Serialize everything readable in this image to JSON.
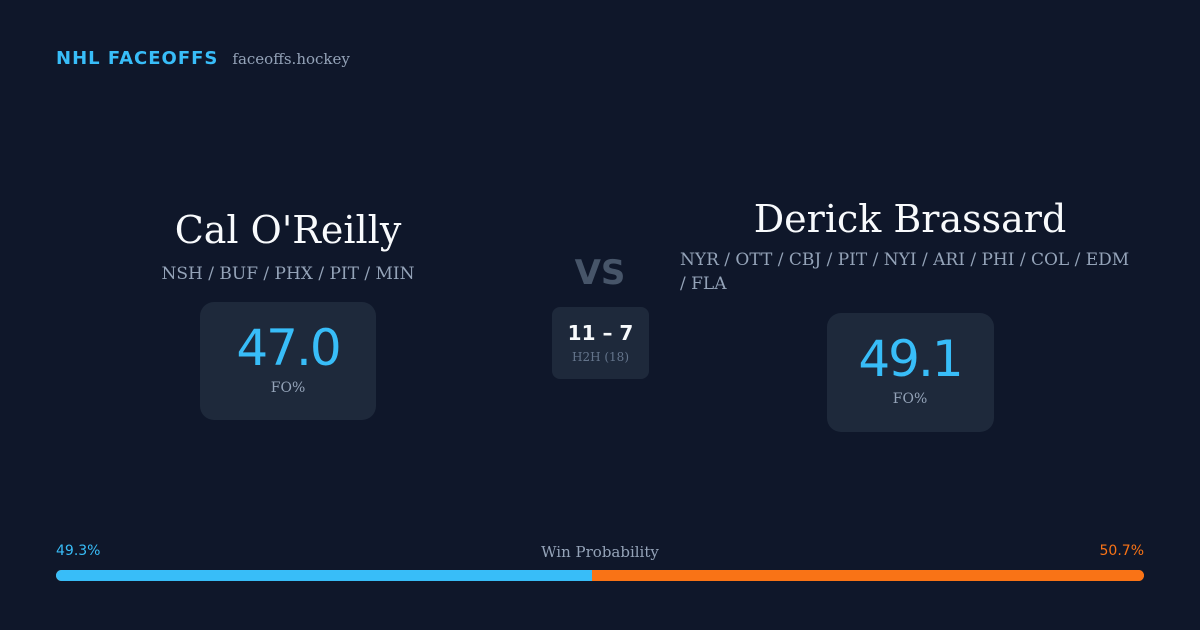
{
  "brand": {
    "title": "NHL FACEOFFS",
    "site": "faceoffs.hockey"
  },
  "player_left": {
    "name": "Cal O'Reilly",
    "teams": "NSH / BUF / PHX / PIT / MIN",
    "stat_value": "47.0",
    "stat_label": "FO%"
  },
  "player_right": {
    "name": "Derick Brassard",
    "teams": "NYR / OTT / CBJ / PIT / NYI / ARI / PHI / COL / EDM / FLA",
    "stat_value": "49.1",
    "stat_label": "FO%"
  },
  "versus": {
    "label": "VS",
    "h2h_score": "11 – 7",
    "h2h_label": "H2H (18)"
  },
  "win_probability": {
    "title": "Win Probability",
    "left_label": "49.3%",
    "right_label": "50.7%",
    "left_value": 49.3,
    "right_value": 50.7,
    "left_color": "#38bdf8",
    "right_color": "#f97316"
  },
  "colors": {
    "background": "#0f172a",
    "card": "#1e293b",
    "accent": "#38bdf8",
    "muted_text": "#94a3b8"
  }
}
